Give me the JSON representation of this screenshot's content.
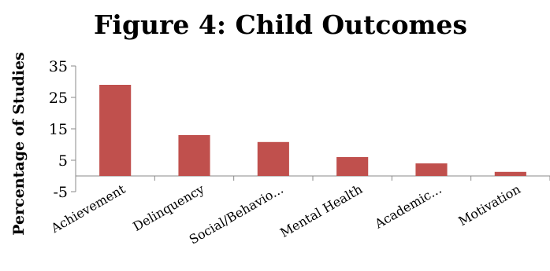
{
  "chart_data": {
    "type": "bar",
    "title": "Figure 4: Child Outcomes",
    "xlabel": "",
    "ylabel": "Percentage of Studies",
    "ylim": [
      -5,
      35
    ],
    "yticks": [
      "35",
      "25",
      "15",
      "5",
      "-5"
    ],
    "grid": false,
    "legend": "none",
    "bar_color": "#c0504d",
    "categories": [
      "Achievement",
      "Delinquency",
      "Social/Behavio...",
      "Mental Health",
      "Academic...",
      "Motivation"
    ],
    "values": [
      29,
      13,
      10.8,
      6,
      4,
      1.3
    ]
  }
}
